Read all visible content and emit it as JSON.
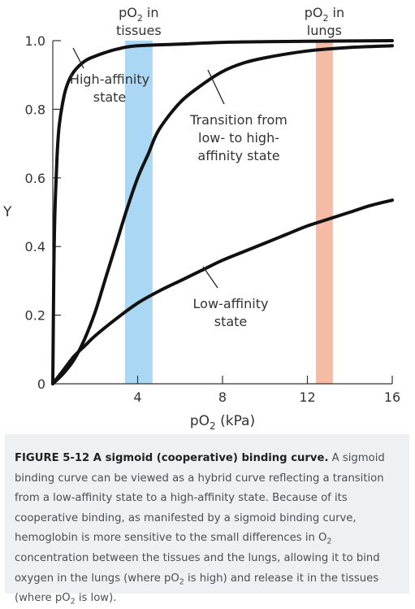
{
  "chart_data": {
    "type": "line",
    "ylabel": "Y",
    "xlim": [
      0,
      16
    ],
    "ylim": [
      0,
      1.0
    ],
    "xticks": [
      4,
      8,
      12,
      16
    ],
    "yticks": [
      0,
      0.2,
      0.4,
      0.6,
      0.8,
      1.0
    ],
    "xtick_labels": [
      "4",
      "8",
      "12",
      "16"
    ],
    "ytick_labels": [
      "0",
      "0.2",
      "0.4",
      "0.6",
      "0.8",
      "1.0"
    ],
    "x_axis_label": {
      "pre": "pO",
      "sub": "2",
      "post": " (kPa)"
    },
    "series": [
      {
        "name": "High-affinity state",
        "x": [
          0,
          0.05,
          0.1,
          0.2,
          0.3,
          0.5,
          0.7,
          1.0,
          1.5,
          2,
          3,
          4,
          6,
          8,
          10,
          12,
          14,
          16
        ],
        "y": [
          0,
          0.33,
          0.5,
          0.66,
          0.75,
          0.83,
          0.875,
          0.91,
          0.94,
          0.955,
          0.975,
          0.985,
          0.99,
          0.995,
          0.997,
          0.998,
          0.999,
          1.0
        ]
      },
      {
        "name": "Transition from low- to high-affinity state",
        "x": [
          0,
          0.5,
          1,
          1.5,
          2,
          2.5,
          3,
          3.5,
          4,
          4.5,
          5,
          6,
          7,
          8,
          9,
          10,
          12,
          14,
          16
        ],
        "y": [
          0,
          0.03,
          0.07,
          0.13,
          0.21,
          0.31,
          0.41,
          0.51,
          0.6,
          0.67,
          0.74,
          0.82,
          0.87,
          0.91,
          0.935,
          0.95,
          0.97,
          0.98,
          0.985
        ]
      },
      {
        "name": "Low-affinity state",
        "x": [
          0,
          0.5,
          1,
          1.5,
          2,
          3,
          4,
          5,
          6,
          7,
          8,
          9,
          10,
          11,
          12,
          13,
          14,
          15,
          16
        ],
        "y": [
          0,
          0.04,
          0.08,
          0.11,
          0.14,
          0.19,
          0.235,
          0.27,
          0.3,
          0.33,
          0.36,
          0.385,
          0.41,
          0.435,
          0.46,
          0.48,
          0.5,
          0.52,
          0.535
        ]
      }
    ],
    "bands": [
      {
        "x_range": [
          3.4,
          4.7
        ],
        "color": "#a9d7f4",
        "label": {
          "pre": "pO",
          "sub": "2",
          "post": " in",
          "line2": "tissues"
        }
      },
      {
        "x_range": [
          12.4,
          13.2
        ],
        "color": "#f6bba5",
        "label": {
          "pre": "pO",
          "sub": "2",
          "post": " in",
          "line2": "lungs"
        }
      }
    ],
    "annotations": [
      {
        "series": 0,
        "lines": [
          "High-affinity",
          "state"
        ]
      },
      {
        "series": 1,
        "lines": [
          "Transition from",
          "low- to high-",
          "affinity state"
        ]
      },
      {
        "series": 2,
        "lines": [
          "Low-affinity",
          "state"
        ]
      }
    ],
    "grid": false,
    "colors": {
      "line": "#111111",
      "axis": "#333333"
    }
  },
  "caption": {
    "title": "FIGURE 5-12 A sigmoid (cooperative) binding curve.",
    "p1": " A sigmoid binding curve can be viewed as a hybrid curve reflecting a transition from a low-affinity state to a high-affinity state. Because of its cooperative binding, as manifested by a sigmoid binding curve, hemoglobin is more sensitive to the small differences in O",
    "p1_sub": "2",
    "p2": " concentration between the tissues and the lungs, allowing it to bind oxygen in the lungs (where pO",
    "p2_sub": "2",
    "p3": " is high) and release it in the tissues (where pO",
    "p3_sub": "2",
    "p4": " is low)."
  }
}
